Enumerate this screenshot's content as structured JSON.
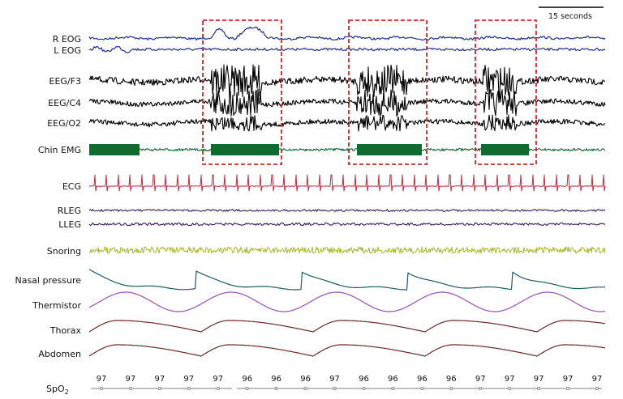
{
  "scale_bar": {
    "label": "15 seconds"
  },
  "channels": [
    {
      "key": "reog",
      "label": "R EOG",
      "color": "#1f2c91"
    },
    {
      "key": "leog",
      "label": "L EOG",
      "color": "#1f2c91"
    },
    {
      "key": "f3",
      "label": "EEG/F3",
      "color": "#000000"
    },
    {
      "key": "c4",
      "label": "EEG/C4",
      "color": "#000000"
    },
    {
      "key": "o2",
      "label": "EEG/O2",
      "color": "#000000"
    },
    {
      "key": "chin",
      "label": "Chin EMG",
      "color": "#0f6b30"
    },
    {
      "key": "ecg",
      "label": "ECG",
      "color": "#c8283c"
    },
    {
      "key": "rleg",
      "label": "RLEG",
      "color": "#3a1a5a"
    },
    {
      "key": "lleg",
      "label": "LLEG",
      "color": "#3a1a5a"
    },
    {
      "key": "snore",
      "label": "Snoring",
      "color": "#a8b820"
    },
    {
      "key": "nasal",
      "label": "Nasal pressure",
      "color": "#1d5c60"
    },
    {
      "key": "therm",
      "label": "Thermistor",
      "color": "#9b4fb8"
    },
    {
      "key": "thorax",
      "label": "Thorax",
      "color": "#6b2a2a"
    },
    {
      "key": "abd",
      "label": "Abdomen",
      "color": "#6b2a2a"
    }
  ],
  "highlight_color": "#e02020",
  "spo2": {
    "label_main": "SpO",
    "label_sub": "2",
    "values": [
      "97",
      "97",
      "97",
      "97",
      "97",
      "96",
      "96",
      "96",
      "97",
      "96",
      "96",
      "96",
      "96",
      "97",
      "97",
      "97",
      "97",
      "97"
    ]
  }
}
